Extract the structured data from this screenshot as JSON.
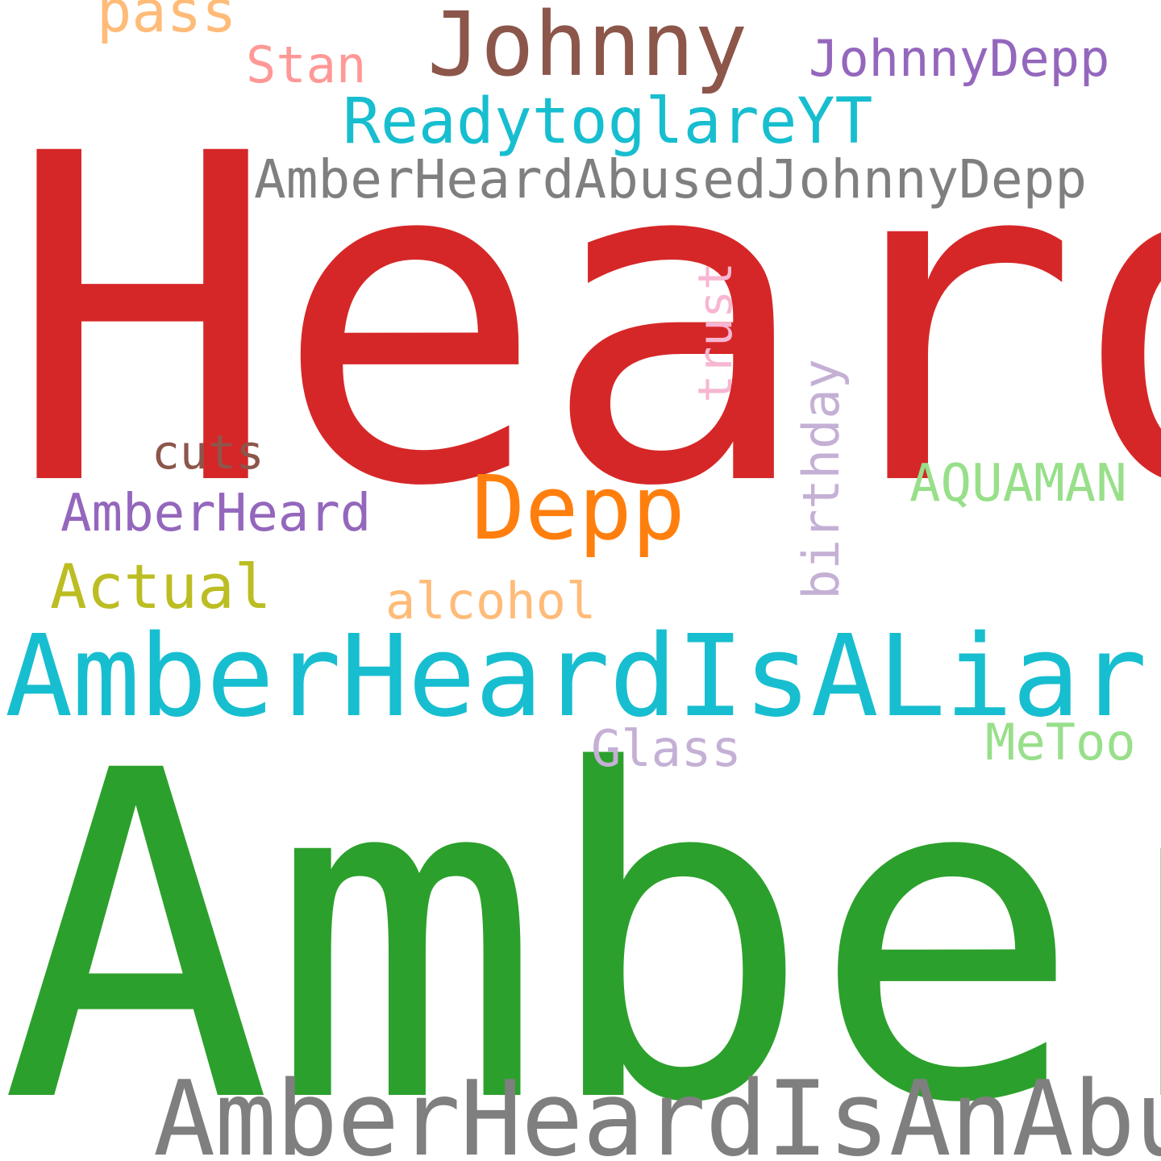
{
  "cloud": {
    "words": [
      {
        "text": "Heard",
        "color": "#d62728"
      },
      {
        "text": "Amber",
        "color": "#2ca02c"
      },
      {
        "text": "AmberHeardIsALiar",
        "color": "#17becf"
      },
      {
        "text": "AmberHeardIsAnAbuser",
        "color": "#7f7f7f"
      },
      {
        "text": "Johnny",
        "color": "#8c564b"
      },
      {
        "text": "Depp",
        "color": "#ff7f0e"
      },
      {
        "text": "ReadytoglareYT",
        "color": "#17becf"
      },
      {
        "text": "AmberHeardAbusedJohnnyDepp",
        "color": "#7f7f7f"
      },
      {
        "text": "JohnnyDepp",
        "color": "#9467bd"
      },
      {
        "text": "pass",
        "color": "#ffbb78"
      },
      {
        "text": "Stan",
        "color": "#ff9896"
      },
      {
        "text": "AmberHeard",
        "color": "#9467bd"
      },
      {
        "text": "cuts",
        "color": "#8c564b"
      },
      {
        "text": "Actual",
        "color": "#bcbd22"
      },
      {
        "text": "alcohol",
        "color": "#ffbb78"
      },
      {
        "text": "AQUAMAN",
        "color": "#98df8a"
      },
      {
        "text": "MeToo",
        "color": "#98df8a"
      },
      {
        "text": "Glass",
        "color": "#c5b0d5"
      },
      {
        "text": "trust",
        "color": "#f7b6d2"
      },
      {
        "text": "birthday",
        "color": "#c5b0d5"
      }
    ]
  }
}
